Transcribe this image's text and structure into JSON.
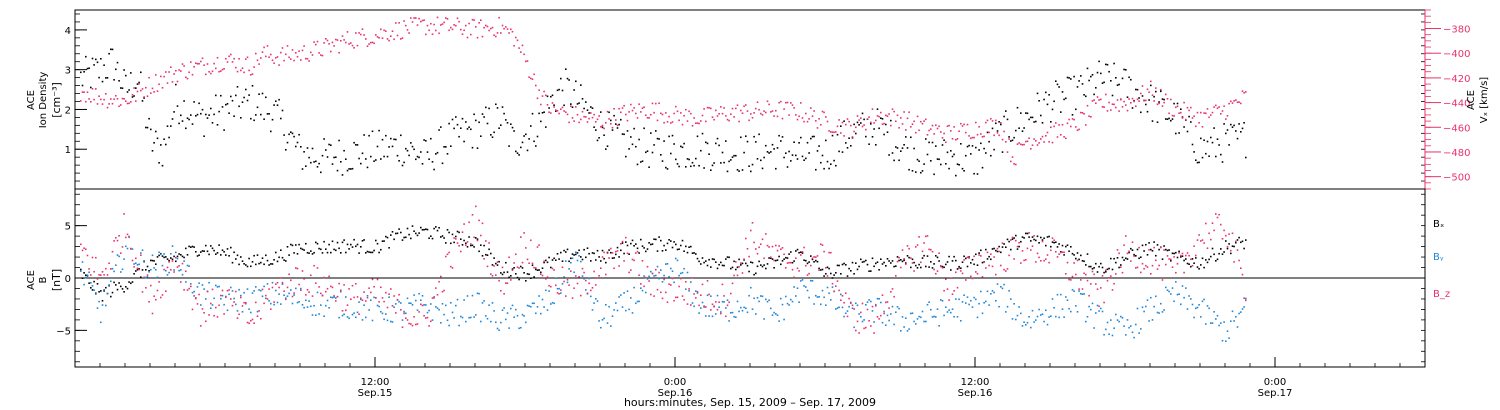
{
  "colors": {
    "black": "#000000",
    "blue": "#1f87d8",
    "red": "#e8336b"
  },
  "xaxis": {
    "title": "hours:minutes, Sep. 15, 2009 – Sep. 17, 2009",
    "ticks": [
      {
        "t": 12,
        "time": "12:00",
        "date": "Sep.15"
      },
      {
        "t": 24,
        "time": "0:00",
        "date": "Sep.16"
      },
      {
        "t": 36,
        "time": "12:00",
        "date": "Sep.16"
      },
      {
        "t": 48,
        "time": "0:00",
        "date": "Sep.17"
      }
    ]
  },
  "chart_data": [
    {
      "type": "scatter",
      "xlim": [
        0,
        54
      ],
      "ylim": [
        0,
        4.5
      ],
      "y2lim": [
        -510,
        -365
      ],
      "left_label": [
        "ACE",
        "Ion Density",
        "[cm⁻³]"
      ],
      "right_label": [
        "ACE",
        "Vₓ [km/s]"
      ],
      "y_ticks": [
        1,
        2,
        3,
        4
      ],
      "y2_ticks": [
        -500,
        -480,
        -460,
        -440,
        -420,
        -400,
        -380
      ],
      "series": [
        {
          "name": "Ion Density",
          "axis": "left",
          "color": "#000000",
          "x": [
            0.2,
            1.0,
            1.5,
            2.0,
            2.5,
            3.0,
            3.5,
            4.0,
            5.0,
            6.0,
            7.0,
            8.0,
            9.0,
            10.0,
            11.0,
            12.0,
            13.0,
            14.0,
            15.0,
            16.0,
            17.0,
            17.5,
            18.0,
            18.5,
            19.0,
            19.5,
            20.0,
            21.0,
            22.0,
            23.0,
            24.0,
            25.0,
            26.0,
            27.0,
            28.0,
            29.0,
            30.0,
            31.0,
            32.0,
            33.0,
            34.0,
            35.0,
            36.0,
            37.0,
            38.0,
            39.0,
            40.0,
            41.0,
            42.0,
            43.0,
            44.0,
            45.0,
            46.0,
            46.8
          ],
          "y": [
            2.8,
            3.0,
            3.2,
            2.5,
            2.8,
            1.2,
            1.0,
            2.2,
            1.8,
            2.0,
            2.2,
            1.9,
            0.9,
            0.8,
            0.9,
            1.0,
            1.1,
            0.8,
            1.3,
            1.5,
            1.8,
            1.2,
            1.4,
            1.6,
            2.2,
            2.6,
            2.3,
            1.6,
            1.2,
            1.0,
            1.0,
            1.0,
            0.95,
            0.9,
            1.0,
            0.85,
            0.9,
            1.4,
            1.6,
            1.1,
            0.8,
            0.85,
            0.75,
            1.4,
            1.8,
            2.2,
            2.4,
            2.8,
            2.6,
            2.2,
            1.8,
            1.0,
            1.2,
            1.3
          ],
          "spread": 0.5
        },
        {
          "name": "Vₓ",
          "axis": "right",
          "color": "#e8336b",
          "x": [
            0.2,
            1.0,
            2.0,
            3.0,
            4.0,
            5.0,
            6.0,
            7.0,
            7.5,
            8.0,
            9.0,
            10.0,
            11.0,
            12.0,
            13.0,
            14.0,
            15.0,
            16.0,
            17.0,
            17.5,
            18.0,
            18.5,
            19.0,
            20.0,
            21.0,
            22.0,
            23.0,
            24.0,
            25.0,
            26.0,
            27.0,
            28.0,
            29.0,
            30.0,
            31.0,
            32.0,
            33.0,
            34.0,
            35.0,
            36.0,
            37.0,
            37.5,
            38.0,
            39.0,
            40.0,
            41.0,
            42.0,
            43.0,
            44.0,
            45.0,
            46.0,
            46.8
          ],
          "y": [
            -430,
            -435,
            -438,
            -425,
            -415,
            -410,
            -405,
            -410,
            -400,
            -402,
            -400,
            -395,
            -388,
            -385,
            -380,
            -377,
            -378,
            -380,
            -378,
            -385,
            -405,
            -430,
            -445,
            -450,
            -455,
            -448,
            -445,
            -450,
            -452,
            -448,
            -447,
            -445,
            -447,
            -455,
            -460,
            -450,
            -452,
            -460,
            -465,
            -460,
            -458,
            -485,
            -470,
            -465,
            -458,
            -440,
            -440,
            -430,
            -445,
            -452,
            -445,
            -435
          ],
          "spread": 8
        }
      ]
    },
    {
      "type": "scatter",
      "xlim": [
        0,
        54
      ],
      "ylim": [
        -8.5,
        8.5
      ],
      "left_label": [
        "ACE",
        "B",
        "[nT]"
      ],
      "y_ticks": [
        -5,
        0,
        5
      ],
      "legend": [
        {
          "label": "Bₓ",
          "color": "#000000"
        },
        {
          "label": "Bᵧ",
          "color": "#1f87d8"
        },
        {
          "label": "B_z",
          "color": "#e8336b"
        }
      ],
      "series": [
        {
          "name": "Bₓ",
          "color": "#000000",
          "x": [
            0.2,
            1.0,
            2.0,
            3.0,
            4.0,
            5.0,
            6.0,
            7.0,
            8.0,
            9.0,
            10.0,
            11.0,
            12.0,
            13.0,
            14.0,
            15.0,
            16.0,
            17.0,
            18.0,
            19.0,
            20.0,
            21.0,
            22.0,
            23.0,
            24.0,
            25.0,
            26.0,
            27.0,
            28.0,
            29.0,
            30.0,
            31.0,
            32.0,
            33.0,
            34.0,
            35.0,
            36.0,
            37.0,
            38.0,
            39.0,
            40.0,
            41.0,
            42.0,
            43.0,
            44.0,
            45.0,
            46.0,
            46.8
          ],
          "y": [
            0.5,
            -1.5,
            -0.5,
            1.5,
            2.0,
            3.0,
            2.5,
            1.5,
            2.0,
            3.0,
            3.0,
            3.2,
            3.0,
            4.2,
            4.5,
            4.0,
            3.5,
            1.0,
            0.5,
            1.5,
            2.5,
            2.0,
            3.0,
            3.2,
            3.5,
            2.0,
            1.5,
            1.0,
            1.5,
            2.5,
            0.5,
            1.0,
            1.5,
            1.8,
            1.5,
            1.5,
            1.8,
            3.0,
            3.8,
            3.5,
            2.5,
            1.0,
            2.0,
            3.0,
            2.0,
            1.5,
            3.0,
            3.5
          ],
          "spread": 0.7
        },
        {
          "name": "Bᵧ",
          "color": "#1f87d8",
          "x": [
            0.2,
            1.0,
            2.0,
            3.0,
            4.0,
            5.0,
            6.0,
            7.0,
            8.0,
            9.0,
            10.0,
            11.0,
            12.0,
            13.0,
            14.0,
            15.0,
            16.0,
            17.0,
            18.0,
            19.0,
            20.0,
            21.0,
            22.0,
            23.0,
            24.0,
            25.0,
            26.0,
            27.0,
            28.0,
            29.0,
            30.0,
            31.0,
            32.0,
            33.0,
            34.0,
            35.0,
            36.0,
            37.0,
            38.0,
            39.0,
            40.0,
            41.0,
            42.0,
            43.0,
            44.0,
            45.0,
            46.0,
            46.8
          ],
          "y": [
            1.0,
            -3.0,
            3.0,
            1.0,
            2.0,
            -1.5,
            -2.0,
            -2.0,
            -1.5,
            -2.0,
            -2.5,
            -2.5,
            -3.0,
            -3.0,
            -2.5,
            -3.5,
            -2.5,
            -4.0,
            -3.5,
            -2.0,
            2.0,
            -4.0,
            -2.5,
            -0.5,
            1.0,
            -2.5,
            -3.0,
            -2.0,
            -3.5,
            -1.0,
            -1.5,
            -3.5,
            -3.0,
            -4.0,
            -3.5,
            -3.0,
            -2.5,
            -1.5,
            -4.0,
            -3.0,
            -2.0,
            -4.0,
            -5.0,
            -3.0,
            -1.5,
            -3.0,
            -5.0,
            -3.0
          ],
          "spread": 1.3
        },
        {
          "name": "B_z",
          "color": "#e8336b",
          "x": [
            0.2,
            1.0,
            2.0,
            3.0,
            4.0,
            5.0,
            6.0,
            7.0,
            8.0,
            9.0,
            10.0,
            11.0,
            12.0,
            13.0,
            14.0,
            15.0,
            16.0,
            17.0,
            18.0,
            19.0,
            20.0,
            21.0,
            22.0,
            23.0,
            24.0,
            25.0,
            26.0,
            27.0,
            28.0,
            29.0,
            30.0,
            31.0,
            32.0,
            33.0,
            34.0,
            35.0,
            36.0,
            37.0,
            38.0,
            39.0,
            40.0,
            41.0,
            42.0,
            43.0,
            44.0,
            45.0,
            46.0,
            46.8
          ],
          "y": [
            3.0,
            0.0,
            5.0,
            -2.0,
            2.0,
            -3.0,
            -2.0,
            -4.0,
            -1.0,
            0.0,
            -0.5,
            -2.0,
            -1.5,
            -3.0,
            -4.0,
            2.0,
            5.5,
            -0.5,
            3.5,
            0.0,
            -1.0,
            1.0,
            2.5,
            -0.5,
            -1.0,
            -1.5,
            -2.0,
            4.0,
            2.0,
            1.5,
            2.0,
            -3.5,
            -4.0,
            1.0,
            3.5,
            -1.0,
            1.5,
            2.0,
            3.0,
            2.5,
            0.5,
            -1.5,
            2.5,
            2.0,
            0.5,
            4.0,
            5.0,
            -1.0
          ],
          "spread": 1.6
        }
      ]
    }
  ]
}
